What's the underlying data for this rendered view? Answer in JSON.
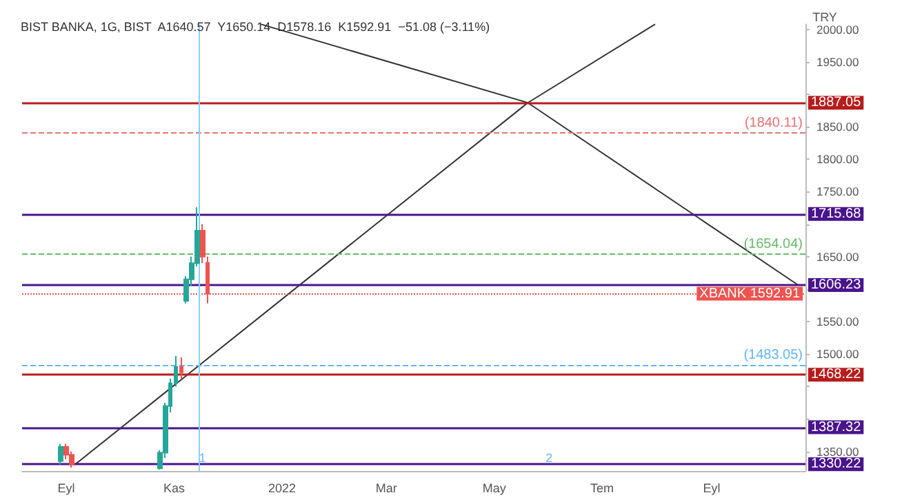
{
  "chart_data": {
    "type": "candlestick",
    "title": "BIST BANKA, 1G, BIST  A1640.57  Y1650.14  D1578.16  K1592.91  −51.08 (−3.11%)",
    "ylabel": "TRY",
    "x": [
      "2021-08-29",
      "2021-09-01",
      "2021-09-04",
      "2021-10-24",
      "2021-10-27",
      "2021-10-30",
      "2021-11-02",
      "2021-11-05",
      "2021-11-08",
      "2021-11-11",
      "2021-11-14",
      "2021-11-17",
      "2021-11-20"
    ],
    "ohlc": [
      [
        1335,
        1362,
        1330,
        1357
      ],
      [
        1357,
        1362,
        1338,
        1345
      ],
      [
        1345,
        1350,
        1325,
        1330
      ],
      [
        1324,
        1352,
        1322,
        1348
      ],
      [
        1348,
        1425,
        1340,
        1420
      ],
      [
        1420,
        1462,
        1410,
        1455
      ],
      [
        1455,
        1497,
        1450,
        1480
      ],
      [
        1480,
        1495,
        1462,
        1472
      ],
      [
        1582,
        1620,
        1578,
        1615
      ],
      [
        1615,
        1650,
        1605,
        1640
      ],
      [
        1640,
        1726,
        1635,
        1690
      ],
      [
        1690,
        1700,
        1640,
        1650
      ],
      [
        1640.57,
        1650.14,
        1578.16,
        1592.91
      ]
    ],
    "series": [
      {
        "type": "line",
        "color": "#333333",
        "x": [
          "2021-09-06",
          "2022-05-20",
          "2022-07-31"
        ],
        "values": [
          1330,
          1887,
          2008
        ]
      },
      {
        "type": "line",
        "color": "#333333",
        "x": [
          "2021-12-20",
          "2022-05-20",
          "2022-10-20"
        ],
        "values": [
          2008,
          1887,
          1606
        ]
      }
    ],
    "xlim": [
      "2021-08-07",
      "2022-10-24"
    ],
    "xticks": [
      {
        "value": "2021-09-01",
        "label": "Eyl"
      },
      {
        "value": "2021-11-01",
        "label": "Kas"
      },
      {
        "value": "2022-01-01",
        "label": "2022"
      },
      {
        "value": "2022-03-01",
        "label": "Mar"
      },
      {
        "value": "2022-05-01",
        "label": "May"
      },
      {
        "value": "2022-07-01",
        "label": "Tem"
      },
      {
        "value": "2022-09-01",
        "label": "Eyl"
      }
    ],
    "ylim": [
      1320,
      2008
    ],
    "yticks": [
      {
        "value": 1350,
        "label": "1350.00"
      },
      {
        "value": 1400,
        "label": null
      },
      {
        "value": 1450,
        "label": null
      },
      {
        "value": 1500,
        "label": "1500.00"
      },
      {
        "value": 1550,
        "label": "1550.00"
      },
      {
        "value": 1600,
        "label": null
      },
      {
        "value": 1650,
        "label": "1650.00"
      },
      {
        "value": 1700,
        "label": null
      },
      {
        "value": 1750,
        "label": "1750.00"
      },
      {
        "value": 1800,
        "label": "1800.00"
      },
      {
        "value": 1850,
        "label": "1850.00"
      },
      {
        "value": 1900,
        "label": null
      },
      {
        "value": 1950,
        "label": "1950.00"
      },
      {
        "value": 2000,
        "label": "2000.00"
      }
    ],
    "ref_lines": [
      {
        "axis": "y",
        "value": 1887.05,
        "label": "1887.05",
        "color": "#b71c1c",
        "line_style": "solid"
      },
      {
        "axis": "y",
        "value": 1715.68,
        "label": "1715.68",
        "color": "#4a148c",
        "line_style": "solid"
      },
      {
        "axis": "y",
        "value": 1606.23,
        "label": "1606.23",
        "color": "#4a148c",
        "line_style": "solid"
      },
      {
        "axis": "y",
        "value": 1468.22,
        "label": "1468.22",
        "color": "#b71c1c",
        "line_style": "solid"
      },
      {
        "axis": "y",
        "value": 1387.32,
        "label": "1387.32",
        "color": "#4a148c",
        "line_style": "solid"
      },
      {
        "axis": "y",
        "value": 1330.22,
        "label": "1330.22",
        "color": "#4a148c",
        "line_style": "solid"
      },
      {
        "axis": "y",
        "value": 1840.11,
        "label": "(1840.11)",
        "color": "#e57373",
        "line_style": "dashed"
      },
      {
        "axis": "y",
        "value": 1654.04,
        "label": "(1654.04)",
        "color": "#66bb6a",
        "line_style": "dashed"
      },
      {
        "axis": "y",
        "value": 1483.05,
        "label": "(1483.05)",
        "color": "#64b5f6",
        "line_style": "dashed"
      },
      {
        "axis": "y",
        "value": 1592.91,
        "label": "XBANK 1592.91",
        "color": "#ef5350",
        "line_style": "dotted"
      },
      {
        "axis": "x",
        "value": "2021-11-15",
        "color": "#81d4fa",
        "line_style": "solid"
      }
    ],
    "annotations": [
      {
        "text": "1",
        "x": "2021-11-17",
        "y": 1340
      },
      {
        "text": "2",
        "x": "2022-06-01",
        "y": 1340
      }
    ],
    "grid": false
  }
}
